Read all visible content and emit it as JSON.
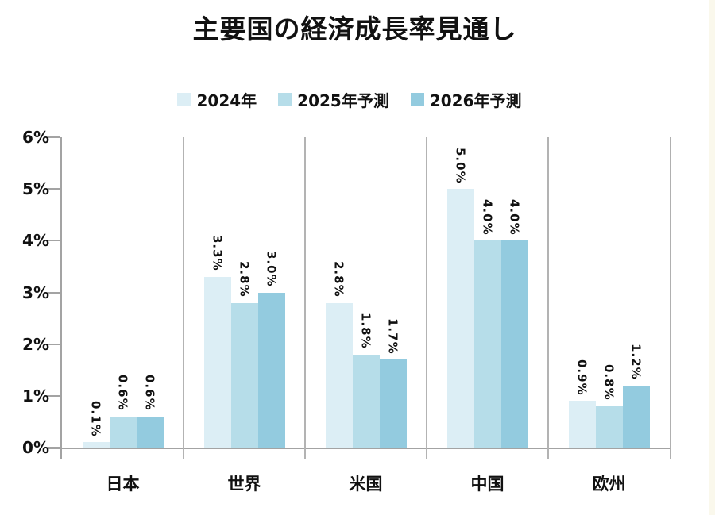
{
  "title": "主要国の経済成長率見通し",
  "colors": {
    "series_2024": "#dceef5",
    "series_2025": "#b6dde9",
    "series_2026": "#93cbdf",
    "axis": "#a3a3a3",
    "separator": "#b3b3b3",
    "text": "#111111",
    "page_edge": "#faf8ec"
  },
  "chart_data": {
    "type": "bar",
    "title": "主要国の経済成長率見通し",
    "categories": [
      "日本",
      "世界",
      "米国",
      "中国",
      "欧州"
    ],
    "series": [
      {
        "name": "2024年",
        "color": "#dceef5",
        "values": [
          0.1,
          3.3,
          2.8,
          5.0,
          0.9
        ]
      },
      {
        "name": "2025年予測",
        "color": "#b6dde9",
        "values": [
          0.6,
          2.8,
          1.8,
          4.0,
          0.8
        ]
      },
      {
        "name": "2026年予測",
        "color": "#93cbdf",
        "values": [
          0.6,
          3.0,
          1.7,
          4.0,
          1.2
        ]
      }
    ],
    "data_labels": [
      [
        "0.1%",
        "3.3%",
        "2.8%",
        "5.0%",
        "0.9%"
      ],
      [
        "0.6%",
        "2.8%",
        "1.8%",
        "4.0%",
        "0.8%"
      ],
      [
        "0.6%",
        "3.0%",
        "1.7%",
        "4.0%",
        "1.2%"
      ]
    ],
    "xlabel": "",
    "ylabel": "",
    "ylim": [
      0,
      6
    ],
    "ytick_labels": [
      "0%",
      "1%",
      "2%",
      "3%",
      "4%",
      "5%",
      "6%"
    ],
    "grid": "vertical-category-separators",
    "legend_position": "top-center",
    "data_label_rotation": "vertical-90cw"
  }
}
